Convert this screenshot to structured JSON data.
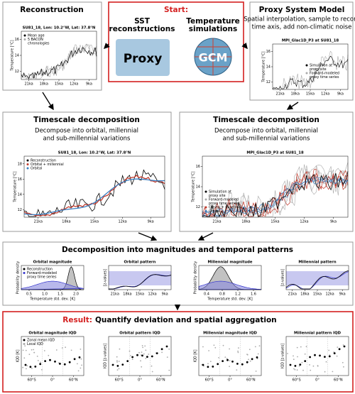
{
  "start": {
    "label": "Start:",
    "left_title": [
      "SST",
      "reconstructions"
    ],
    "right_title": [
      "Temperature",
      "simulations"
    ],
    "left_icon": "Proxy",
    "right_icon": "GCM"
  },
  "reconstruction": {
    "title": "Reconstruction",
    "plot": {
      "title": "SU81_18, Lon: 10.2°W, Lat: 37.8°N",
      "ylabel": "Temperature [°C]",
      "yticks": [
        "12",
        "14",
        "16"
      ],
      "xticks": [
        "21ka",
        "18ka",
        "15ka",
        "12ka",
        "9ka"
      ],
      "legend": [
        {
          "text": [
            "Mean age"
          ],
          "color": "#000000"
        },
        {
          "text": [
            "5 BACON",
            "chronologies"
          ],
          "color": "#aaaaaa"
        }
      ]
    }
  },
  "proxy_system_model": {
    "title": "Proxy System Model",
    "description": [
      "Spatial interpolation, sample to record",
      "time axis, add non-climatic noise"
    ],
    "plot": {
      "title": "MPI_Glac1D_P3 at SU81_18",
      "ylabel": "Temperature [°C]",
      "yticks": [
        "12",
        "14",
        "16"
      ],
      "xticks": [
        "21ka",
        "18ka",
        "15ka",
        "12ka",
        "9ka"
      ],
      "legend": [
        {
          "text": [
            "Simulation at",
            "proxy site"
          ],
          "color": "#000000"
        },
        {
          "text": [
            "Forward-modeled",
            "proxy time series"
          ],
          "color": "#aaaaaa"
        }
      ]
    }
  },
  "decomposition_reconstruction": {
    "title": "Timescale decomposition",
    "description": [
      "Decompose into orbital, millennial",
      "and sub-millennial variations"
    ],
    "plot": {
      "title": "SU81_18, Lon: 10.2°W, Lat: 37.8°N",
      "ylabel": "Temperature [°C]",
      "yticks": [
        "12",
        "14",
        "16",
        "18"
      ],
      "xticks": [
        "21ka",
        "18ka",
        "15ka",
        "12ka",
        "9ka"
      ],
      "legend": [
        {
          "text": [
            "Reconstruction"
          ],
          "color": "#000000"
        },
        {
          "text": [
            "Orbital + millennial"
          ],
          "color": "#c0392b"
        },
        {
          "text": [
            "Orbital"
          ],
          "color": "#3a7fc1"
        }
      ]
    }
  },
  "decomposition_simulation": {
    "title": "Timescale decomposition",
    "description": [
      "Decompose into orbital, millennial",
      "and sub-millennial variations"
    ],
    "plot": {
      "title": "MPI_Glac1D_P3 at SU81_18",
      "ylabel": "Temperature [°C]",
      "yticks": [
        "12",
        "14",
        "16"
      ],
      "xticks": [
        "21ka",
        "18ka",
        "15ka",
        "12ka",
        "9ka"
      ],
      "legend": [
        {
          "text": [
            "Simulation at",
            "proxy site"
          ],
          "color": "#000000"
        },
        {
          "text": [
            "Forward-modeled",
            "proxy time series"
          ],
          "color": "#aaaaaa"
        },
        {
          "text": [
            "Orbital + millennial"
          ],
          "color": "#c0392b"
        },
        {
          "text": [
            "Orbital"
          ],
          "color": "#3a7fc1"
        }
      ]
    }
  },
  "magnitudes_patterns": {
    "title": "Decomposition into magnitudes and temporal patterns",
    "panels": [
      {
        "title": "Orbital magnitude",
        "ylabel": "Probability density",
        "xlabel": "Temperature std. dev. [K]",
        "xticks": [
          "0.5",
          "1.0",
          "1.5",
          "2.0"
        ],
        "legend": [
          {
            "text": [
              "Reconstruction"
            ],
            "color": "#000000"
          },
          {
            "text": [
              "Forward-modeled",
              "proxy time series"
            ],
            "color": "#3333cc"
          }
        ]
      },
      {
        "title": "Orbital pattern",
        "ylabel": "[z-values]",
        "xticks": [
          "21ka",
          "18ka",
          "15ka",
          "12ka",
          "9ka"
        ]
      },
      {
        "title": "Millennial magnitude",
        "ylabel": "Probability density",
        "xlabel": "Temperature std. dev. [K]",
        "xticks": [
          "0.4",
          "0.8",
          "1.2",
          "1.6"
        ]
      },
      {
        "title": "Millennial pattern",
        "ylabel": "[z-values]",
        "xticks": [
          "21ka",
          "18ka",
          "15ka",
          "12ka",
          "9ka"
        ]
      }
    ]
  },
  "result": {
    "label": "Result:",
    "title": "Quantify deviation and spatial aggregation",
    "panels": [
      {
        "title": "Orbital magnitude IQD",
        "ylabel": "IQD [K]",
        "xticks": [
          "60°S",
          "0°",
          "60°N"
        ],
        "legend": [
          {
            "text": [
              "Zonal mean IQD"
            ],
            "color": "#000000"
          },
          {
            "text": [
              "Local IQD"
            ],
            "color": "#aaaaaa"
          }
        ]
      },
      {
        "title": "Orbital pattern IQD",
        "ylabel": "IQD [z-values]",
        "xticks": [
          "60°S",
          "0°",
          "60°N"
        ]
      },
      {
        "title": "Millennial magnitude IQD",
        "ylabel": "IQD [K]",
        "xticks": [
          "60°S",
          "0°",
          "60°N"
        ]
      },
      {
        "title": "Millennial pattern IQD",
        "ylabel": "IQD [z-values]",
        "xticks": [
          "60°S",
          "0°",
          "60°N"
        ]
      }
    ]
  }
}
